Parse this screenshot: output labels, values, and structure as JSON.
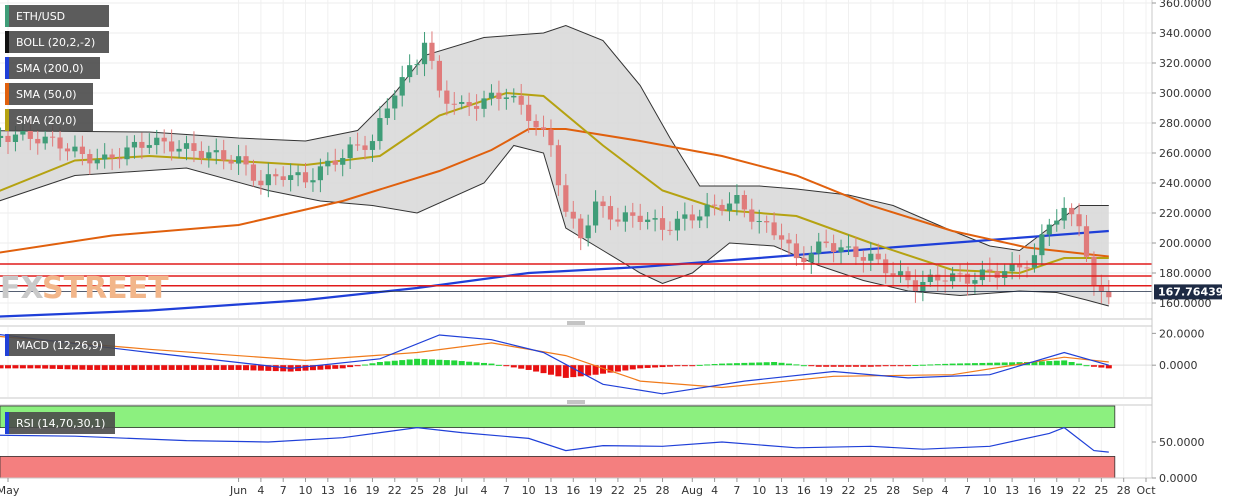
{
  "chart_data": {
    "type": "candlestick",
    "symbol": "ETH/USD",
    "indicators": [
      {
        "name": "BOLL (20,2,-2)",
        "color": "#555555"
      },
      {
        "name": "SMA (200,0)",
        "color": "#1f3fd8"
      },
      {
        "name": "SMA (50,0)",
        "color": "#e0600d"
      },
      {
        "name": "SMA (20,0)",
        "color": "#b5a211"
      }
    ],
    "watermark": {
      "part1": "FX",
      "part2": "STREET"
    },
    "current_price": "167.76439",
    "current_price_value": 167.76,
    "price_axis": {
      "ylim": [
        150,
        362
      ],
      "ticks": [
        "360.0000",
        "340.0000",
        "320.0000",
        "300.0000",
        "280.0000",
        "260.0000",
        "240.0000",
        "220.0000",
        "200.0000",
        "180.0000",
        "160.0000"
      ],
      "tick_values": [
        360,
        340,
        320,
        300,
        280,
        260,
        240,
        220,
        200,
        180,
        160
      ]
    },
    "horizontal_levels": [
      186,
      178,
      171.5
    ],
    "start_date": "2019-05-01",
    "end_date": "2019-10-01",
    "x_ticks": [
      {
        "label": "May",
        "date": "2019-05-01"
      },
      {
        "label": "Jun",
        "date": "2019-06-01"
      },
      {
        "label": "4",
        "date": "2019-06-04"
      },
      {
        "label": "7",
        "date": "2019-06-07"
      },
      {
        "label": "10",
        "date": "2019-06-10"
      },
      {
        "label": "13",
        "date": "2019-06-13"
      },
      {
        "label": "16",
        "date": "2019-06-16"
      },
      {
        "label": "19",
        "date": "2019-06-19"
      },
      {
        "label": "22",
        "date": "2019-06-22"
      },
      {
        "label": "25",
        "date": "2019-06-25"
      },
      {
        "label": "28",
        "date": "2019-06-28"
      },
      {
        "label": "Jul",
        "date": "2019-07-01"
      },
      {
        "label": "4",
        "date": "2019-07-04"
      },
      {
        "label": "7",
        "date": "2019-07-07"
      },
      {
        "label": "10",
        "date": "2019-07-10"
      },
      {
        "label": "13",
        "date": "2019-07-13"
      },
      {
        "label": "16",
        "date": "2019-07-16"
      },
      {
        "label": "19",
        "date": "2019-07-19"
      },
      {
        "label": "22",
        "date": "2019-07-22"
      },
      {
        "label": "25",
        "date": "2019-07-25"
      },
      {
        "label": "28",
        "date": "2019-07-28"
      },
      {
        "label": "Aug",
        "date": "2019-08-01"
      },
      {
        "label": "4",
        "date": "2019-08-04"
      },
      {
        "label": "7",
        "date": "2019-08-07"
      },
      {
        "label": "10",
        "date": "2019-08-10"
      },
      {
        "label": "13",
        "date": "2019-08-13"
      },
      {
        "label": "16",
        "date": "2019-08-16"
      },
      {
        "label": "19",
        "date": "2019-08-19"
      },
      {
        "label": "22",
        "date": "2019-08-22"
      },
      {
        "label": "25",
        "date": "2019-08-25"
      },
      {
        "label": "28",
        "date": "2019-08-28"
      },
      {
        "label": "Sep",
        "date": "2019-09-01"
      },
      {
        "label": "4",
        "date": "2019-09-04"
      },
      {
        "label": "7",
        "date": "2019-09-07"
      },
      {
        "label": "10",
        "date": "2019-09-10"
      },
      {
        "label": "13",
        "date": "2019-09-13"
      },
      {
        "label": "16",
        "date": "2019-09-16"
      },
      {
        "label": "19",
        "date": "2019-09-19"
      },
      {
        "label": "22",
        "date": "2019-09-22"
      },
      {
        "label": "25",
        "date": "2019-09-25"
      },
      {
        "label": "28",
        "date": "2019-09-28"
      },
      {
        "label": "Oct",
        "date": "2019-10-01"
      }
    ],
    "close_series": [
      {
        "date": "2019-04-29",
        "c": 270
      },
      {
        "date": "2019-05-02",
        "c": 272
      },
      {
        "date": "2019-05-05",
        "c": 270
      },
      {
        "date": "2019-05-08",
        "c": 266
      },
      {
        "date": "2019-05-11",
        "c": 258
      },
      {
        "date": "2019-05-14",
        "c": 255
      },
      {
        "date": "2019-05-17",
        "c": 262
      },
      {
        "date": "2019-05-20",
        "c": 268
      },
      {
        "date": "2019-06-01",
        "c": 255
      },
      {
        "date": "2019-06-04",
        "c": 240
      },
      {
        "date": "2019-06-07",
        "c": 246
      },
      {
        "date": "2019-06-10",
        "c": 242
      },
      {
        "date": "2019-06-13",
        "c": 252
      },
      {
        "date": "2019-06-16",
        "c": 262
      },
      {
        "date": "2019-06-19",
        "c": 268
      },
      {
        "date": "2019-06-22",
        "c": 302
      },
      {
        "date": "2019-06-25",
        "c": 322
      },
      {
        "date": "2019-06-26",
        "c": 336
      },
      {
        "date": "2019-06-28",
        "c": 300
      },
      {
        "date": "2019-07-01",
        "c": 290
      },
      {
        "date": "2019-07-04",
        "c": 295
      },
      {
        "date": "2019-07-07",
        "c": 300
      },
      {
        "date": "2019-07-10",
        "c": 285
      },
      {
        "date": "2019-07-13",
        "c": 265
      },
      {
        "date": "2019-07-15",
        "c": 220
      },
      {
        "date": "2019-07-17",
        "c": 205
      },
      {
        "date": "2019-07-19",
        "c": 225
      },
      {
        "date": "2019-07-22",
        "c": 216
      },
      {
        "date": "2019-07-25",
        "c": 218
      },
      {
        "date": "2019-07-28",
        "c": 210
      },
      {
        "date": "2019-08-01",
        "c": 218
      },
      {
        "date": "2019-08-04",
        "c": 224
      },
      {
        "date": "2019-08-07",
        "c": 228
      },
      {
        "date": "2019-08-10",
        "c": 213
      },
      {
        "date": "2019-08-13",
        "c": 205
      },
      {
        "date": "2019-08-15",
        "c": 188
      },
      {
        "date": "2019-08-19",
        "c": 200
      },
      {
        "date": "2019-08-22",
        "c": 194
      },
      {
        "date": "2019-08-25",
        "c": 190
      },
      {
        "date": "2019-08-28",
        "c": 180
      },
      {
        "date": "2019-08-31",
        "c": 172
      },
      {
        "date": "2019-09-04",
        "c": 178
      },
      {
        "date": "2019-09-07",
        "c": 176
      },
      {
        "date": "2019-09-10",
        "c": 180
      },
      {
        "date": "2019-09-13",
        "c": 182
      },
      {
        "date": "2019-09-16",
        "c": 190
      },
      {
        "date": "2019-09-18",
        "c": 215
      },
      {
        "date": "2019-09-20",
        "c": 220
      },
      {
        "date": "2019-09-22",
        "c": 215
      },
      {
        "date": "2019-09-24",
        "c": 168
      },
      {
        "date": "2019-09-26",
        "c": 167.76
      }
    ],
    "bollinger": {
      "upper": [
        {
          "date": "2019-04-25",
          "v": 275
        },
        {
          "date": "2019-05-20",
          "v": 274
        },
        {
          "date": "2019-06-01",
          "v": 270
        },
        {
          "date": "2019-06-10",
          "v": 268
        },
        {
          "date": "2019-06-17",
          "v": 275
        },
        {
          "date": "2019-06-22",
          "v": 300
        },
        {
          "date": "2019-06-26",
          "v": 325
        },
        {
          "date": "2019-07-04",
          "v": 337
        },
        {
          "date": "2019-07-12",
          "v": 340
        },
        {
          "date": "2019-07-15",
          "v": 345
        },
        {
          "date": "2019-07-20",
          "v": 335
        },
        {
          "date": "2019-07-25",
          "v": 305
        },
        {
          "date": "2019-07-29",
          "v": 270
        },
        {
          "date": "2019-08-02",
          "v": 238
        },
        {
          "date": "2019-08-10",
          "v": 238
        },
        {
          "date": "2019-08-15",
          "v": 236
        },
        {
          "date": "2019-08-22",
          "v": 232
        },
        {
          "date": "2019-08-28",
          "v": 225
        },
        {
          "date": "2019-09-04",
          "v": 210
        },
        {
          "date": "2019-09-10",
          "v": 198
        },
        {
          "date": "2019-09-14",
          "v": 195
        },
        {
          "date": "2019-09-18",
          "v": 210
        },
        {
          "date": "2019-09-22",
          "v": 225
        },
        {
          "date": "2019-09-26",
          "v": 225
        }
      ],
      "lower": [
        {
          "date": "2019-04-25",
          "v": 220
        },
        {
          "date": "2019-05-10",
          "v": 245
        },
        {
          "date": "2019-05-25",
          "v": 250
        },
        {
          "date": "2019-06-05",
          "v": 235
        },
        {
          "date": "2019-06-12",
          "v": 228
        },
        {
          "date": "2019-06-19",
          "v": 225
        },
        {
          "date": "2019-06-25",
          "v": 220
        },
        {
          "date": "2019-07-04",
          "v": 240
        },
        {
          "date": "2019-07-08",
          "v": 265
        },
        {
          "date": "2019-07-12",
          "v": 260
        },
        {
          "date": "2019-07-15",
          "v": 210
        },
        {
          "date": "2019-07-20",
          "v": 195
        },
        {
          "date": "2019-07-25",
          "v": 180
        },
        {
          "date": "2019-07-28",
          "v": 173
        },
        {
          "date": "2019-08-01",
          "v": 180
        },
        {
          "date": "2019-08-06",
          "v": 200
        },
        {
          "date": "2019-08-12",
          "v": 198
        },
        {
          "date": "2019-08-18",
          "v": 185
        },
        {
          "date": "2019-08-24",
          "v": 175
        },
        {
          "date": "2019-08-30",
          "v": 168
        },
        {
          "date": "2019-09-06",
          "v": 165
        },
        {
          "date": "2019-09-14",
          "v": 168
        },
        {
          "date": "2019-09-19",
          "v": 167
        },
        {
          "date": "2019-09-23",
          "v": 162
        },
        {
          "date": "2019-09-26",
          "v": 158
        }
      ]
    },
    "sma200": [
      {
        "date": "2019-04-25",
        "v": 150
      },
      {
        "date": "2019-05-20",
        "v": 155
      },
      {
        "date": "2019-06-10",
        "v": 162
      },
      {
        "date": "2019-06-25",
        "v": 170
      },
      {
        "date": "2019-07-10",
        "v": 180
      },
      {
        "date": "2019-07-25",
        "v": 184
      },
      {
        "date": "2019-08-10",
        "v": 190
      },
      {
        "date": "2019-08-25",
        "v": 196
      },
      {
        "date": "2019-09-10",
        "v": 202
      },
      {
        "date": "2019-09-26",
        "v": 208
      }
    ],
    "sma50": [
      {
        "date": "2019-04-25",
        "v": 190
      },
      {
        "date": "2019-05-15",
        "v": 205
      },
      {
        "date": "2019-06-01",
        "v": 212
      },
      {
        "date": "2019-06-15",
        "v": 228
      },
      {
        "date": "2019-06-28",
        "v": 248
      },
      {
        "date": "2019-07-05",
        "v": 262
      },
      {
        "date": "2019-07-10",
        "v": 276
      },
      {
        "date": "2019-07-15",
        "v": 276
      },
      {
        "date": "2019-07-25",
        "v": 268
      },
      {
        "date": "2019-08-05",
        "v": 258
      },
      {
        "date": "2019-08-15",
        "v": 245
      },
      {
        "date": "2019-08-25",
        "v": 225
      },
      {
        "date": "2019-09-05",
        "v": 208
      },
      {
        "date": "2019-09-15",
        "v": 197
      },
      {
        "date": "2019-09-26",
        "v": 191
      }
    ],
    "sma20": [
      {
        "date": "2019-04-25",
        "v": 225
      },
      {
        "date": "2019-05-10",
        "v": 255
      },
      {
        "date": "2019-05-20",
        "v": 258
      },
      {
        "date": "2019-06-10",
        "v": 252
      },
      {
        "date": "2019-06-20",
        "v": 258
      },
      {
        "date": "2019-06-28",
        "v": 285
      },
      {
        "date": "2019-07-07",
        "v": 300
      },
      {
        "date": "2019-07-12",
        "v": 298
      },
      {
        "date": "2019-07-20",
        "v": 265
      },
      {
        "date": "2019-07-28",
        "v": 235
      },
      {
        "date": "2019-08-05",
        "v": 222
      },
      {
        "date": "2019-08-15",
        "v": 218
      },
      {
        "date": "2019-08-25",
        "v": 200
      },
      {
        "date": "2019-09-05",
        "v": 182
      },
      {
        "date": "2019-09-14",
        "v": 180
      },
      {
        "date": "2019-09-20",
        "v": 190
      },
      {
        "date": "2019-09-26",
        "v": 190
      }
    ],
    "macd": {
      "name": "MACD (12,26,9)",
      "ylim": [
        -20,
        24
      ],
      "ticks": [
        "20.0000",
        "0.0000"
      ],
      "tick_values": [
        20,
        0
      ],
      "macd_line": [
        {
          "date": "2019-04-25",
          "v": 22
        },
        {
          "date": "2019-05-20",
          "v": 8
        },
        {
          "date": "2019-06-08",
          "v": -2
        },
        {
          "date": "2019-06-20",
          "v": 4
        },
        {
          "date": "2019-06-28",
          "v": 19
        },
        {
          "date": "2019-07-05",
          "v": 16
        },
        {
          "date": "2019-07-12",
          "v": 8
        },
        {
          "date": "2019-07-20",
          "v": -12
        },
        {
          "date": "2019-07-28",
          "v": -18
        },
        {
          "date": "2019-08-08",
          "v": -10
        },
        {
          "date": "2019-08-20",
          "v": -4
        },
        {
          "date": "2019-08-30",
          "v": -8
        },
        {
          "date": "2019-09-10",
          "v": -6
        },
        {
          "date": "2019-09-20",
          "v": 8
        },
        {
          "date": "2019-09-26",
          "v": 0
        }
      ],
      "signal_line": [
        {
          "date": "2019-04-25",
          "v": 20
        },
        {
          "date": "2019-05-20",
          "v": 10
        },
        {
          "date": "2019-06-10",
          "v": 3
        },
        {
          "date": "2019-06-25",
          "v": 8
        },
        {
          "date": "2019-07-05",
          "v": 14
        },
        {
          "date": "2019-07-15",
          "v": 6
        },
        {
          "date": "2019-07-25",
          "v": -10
        },
        {
          "date": "2019-08-05",
          "v": -14
        },
        {
          "date": "2019-08-20",
          "v": -7
        },
        {
          "date": "2019-09-05",
          "v": -6
        },
        {
          "date": "2019-09-20",
          "v": 5
        },
        {
          "date": "2019-09-26",
          "v": 2
        }
      ],
      "histogram": [
        {
          "date": "2019-05-05",
          "v": -2
        },
        {
          "date": "2019-05-12",
          "v": -3
        },
        {
          "date": "2019-05-20",
          "v": -3
        },
        {
          "date": "2019-06-01",
          "v": -3
        },
        {
          "date": "2019-06-08",
          "v": -4
        },
        {
          "date": "2019-06-15",
          "v": -2
        },
        {
          "date": "2019-06-20",
          "v": 2
        },
        {
          "date": "2019-06-25",
          "v": 4
        },
        {
          "date": "2019-06-30",
          "v": 3
        },
        {
          "date": "2019-07-05",
          "v": 1
        },
        {
          "date": "2019-07-10",
          "v": -3
        },
        {
          "date": "2019-07-15",
          "v": -8
        },
        {
          "date": "2019-07-19",
          "v": -6
        },
        {
          "date": "2019-07-25",
          "v": -2
        },
        {
          "date": "2019-08-05",
          "v": 1
        },
        {
          "date": "2019-08-12",
          "v": 2
        },
        {
          "date": "2019-08-18",
          "v": -1
        },
        {
          "date": "2019-08-25",
          "v": -1
        },
        {
          "date": "2019-09-05",
          "v": 1
        },
        {
          "date": "2019-09-15",
          "v": 2
        },
        {
          "date": "2019-09-20",
          "v": 3
        },
        {
          "date": "2019-09-24",
          "v": -1
        },
        {
          "date": "2019-09-26",
          "v": -2
        }
      ]
    },
    "rsi": {
      "name": "RSI (14,70,30,1)",
      "ylim": [
        0,
        100
      ],
      "ticks": [
        "50.0000",
        "0.0000"
      ],
      "tick_values": [
        50,
        0
      ],
      "overbought": 70,
      "oversold": 30,
      "line": [
        {
          "date": "2019-04-25",
          "v": 60
        },
        {
          "date": "2019-05-10",
          "v": 58
        },
        {
          "date": "2019-05-25",
          "v": 52
        },
        {
          "date": "2019-06-05",
          "v": 50
        },
        {
          "date": "2019-06-15",
          "v": 56
        },
        {
          "date": "2019-06-25",
          "v": 70
        },
        {
          "date": "2019-07-01",
          "v": 63
        },
        {
          "date": "2019-07-10",
          "v": 55
        },
        {
          "date": "2019-07-15",
          "v": 38
        },
        {
          "date": "2019-07-20",
          "v": 45
        },
        {
          "date": "2019-07-28",
          "v": 44
        },
        {
          "date": "2019-08-05",
          "v": 50
        },
        {
          "date": "2019-08-15",
          "v": 42
        },
        {
          "date": "2019-08-25",
          "v": 44
        },
        {
          "date": "2019-09-01",
          "v": 40
        },
        {
          "date": "2019-09-10",
          "v": 44
        },
        {
          "date": "2019-09-18",
          "v": 62
        },
        {
          "date": "2019-09-20",
          "v": 70
        },
        {
          "date": "2019-09-24",
          "v": 38
        },
        {
          "date": "2019-09-26",
          "v": 36
        }
      ]
    }
  }
}
